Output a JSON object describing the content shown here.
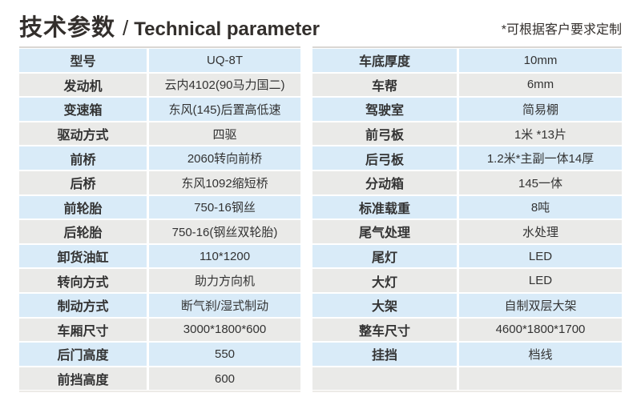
{
  "header": {
    "title_zh": "技术参数",
    "title_sep": "/",
    "title_en": "Technical parameter",
    "note": "*可根据客户要求定制"
  },
  "tables": {
    "left": {
      "rows": [
        {
          "label": "型号",
          "value": "UQ-8T"
        },
        {
          "label": "发动机",
          "value": "云内4102(90马力国二)"
        },
        {
          "label": "变速箱",
          "value": "东风(145)后置高低速"
        },
        {
          "label": "驱动方式",
          "value": "四驱"
        },
        {
          "label": "前桥",
          "value": "2060转向前桥"
        },
        {
          "label": "后桥",
          "value": "东风1092缩短桥"
        },
        {
          "label": "前轮胎",
          "value": "750-16钢丝"
        },
        {
          "label": "后轮胎",
          "value": "750-16(钢丝双轮胎)"
        },
        {
          "label": "卸货油缸",
          "value": "110*1200"
        },
        {
          "label": "转向方式",
          "value": "助力方向机"
        },
        {
          "label": "制动方式",
          "value": "断气刹/湿式制动"
        },
        {
          "label": "车厢尺寸",
          "value": "3000*1800*600"
        },
        {
          "label": "后门高度",
          "value": "550"
        },
        {
          "label": "前挡高度",
          "value": "600"
        }
      ]
    },
    "right": {
      "rows": [
        {
          "label": "车底厚度",
          "value": "10mm"
        },
        {
          "label": "车帮",
          "value": "6mm"
        },
        {
          "label": "驾驶室",
          "value": "简易棚"
        },
        {
          "label": "前弓板",
          "value": "1米 *13片"
        },
        {
          "label": "后弓板",
          "value": "1.2米*主副一体14厚"
        },
        {
          "label": "分动箱",
          "value": "145一体"
        },
        {
          "label": "标准载重",
          "value": "8吨"
        },
        {
          "label": "尾气处理",
          "value": "水处理"
        },
        {
          "label": "尾灯",
          "value": "LED"
        },
        {
          "label": "大灯",
          "value": "LED"
        },
        {
          "label": "大架",
          "value": "自制双层大架"
        },
        {
          "label": "整车尺寸",
          "value": "4600*1800*1700"
        },
        {
          "label": "挂挡",
          "value": "档线"
        },
        {
          "label": "",
          "value": ""
        }
      ]
    }
  },
  "colors": {
    "page_bg": "#ffffff",
    "row_blue": "#d9ebf8",
    "row_gray": "#eaeae8",
    "text": "#333333",
    "title": "#332f2c"
  }
}
